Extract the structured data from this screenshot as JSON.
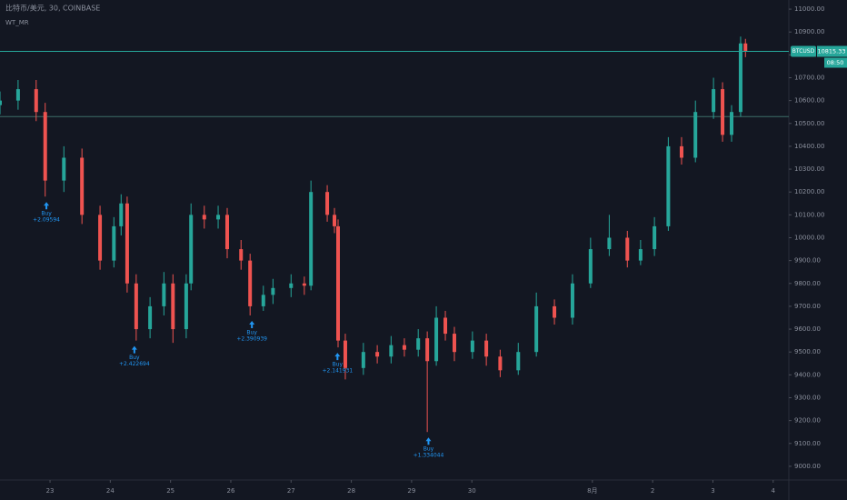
{
  "chart_data": {
    "type": "candlestick",
    "title": "比特币/美元, 30, COINBASE",
    "subtitle": "WT_MR",
    "symbol": "BTCUSD",
    "last_price": 10815.33,
    "countdown": "08:50",
    "level": 10530,
    "up_color": "#26a69a",
    "down_color": "#ef5350",
    "x": [
      -0.83,
      -0.53,
      -0.23,
      -0.08,
      0.23,
      0.53,
      0.83,
      1.06,
      1.18,
      1.28,
      1.43,
      1.66,
      1.89,
      2.04,
      2.26,
      2.34,
      2.56,
      2.79,
      2.94,
      3.17,
      3.32,
      3.54,
      3.7,
      4.0,
      4.22,
      4.33,
      4.6,
      4.72,
      4.78,
      4.9,
      5.2,
      5.43,
      5.66,
      5.88,
      6.11,
      6.26,
      6.41,
      6.56,
      6.71,
      7.01,
      7.24,
      7.47,
      7.77,
      8.07,
      8.37,
      8.67,
      8.97,
      9.28,
      9.58,
      9.8,
      10.03,
      10.26,
      10.48,
      10.71,
      11.01,
      11.16,
      11.31,
      11.46,
      11.54
    ],
    "open": [
      10580,
      10600,
      10650,
      10550,
      10250,
      10350,
      10100,
      9900,
      10050,
      10150,
      9800,
      9600,
      9700,
      9800,
      9600,
      9800,
      10100,
      10080,
      10100,
      9950,
      9900,
      9700,
      9750,
      9780,
      9800,
      9790,
      10200,
      10100,
      10050,
      9550,
      9430,
      9500,
      9480,
      9530,
      9510,
      9560,
      9460,
      9650,
      9580,
      9500,
      9550,
      9480,
      9420,
      9500,
      9700,
      9650,
      9800,
      9950,
      10000,
      9900,
      9950,
      10050,
      10400,
      10350,
      10550,
      10650,
      10450,
      10550,
      10850
    ],
    "high": [
      10640,
      10690,
      10690,
      10590,
      10400,
      10390,
      10140,
      10090,
      10190,
      10180,
      9840,
      9740,
      9850,
      9840,
      9840,
      10150,
      10140,
      10140,
      10130,
      9990,
      9930,
      9790,
      9820,
      9840,
      9830,
      10250,
      10230,
      10130,
      10080,
      9580,
      9540,
      9530,
      9570,
      9560,
      9600,
      9590,
      9700,
      9680,
      9610,
      9590,
      9580,
      9510,
      9540,
      9760,
      9730,
      9840,
      10000,
      10100,
      10030,
      9990,
      10090,
      10440,
      10440,
      10600,
      10700,
      10680,
      10580,
      10880,
      10870
    ],
    "low": [
      10540,
      10560,
      10510,
      10180,
      10200,
      10060,
      9860,
      9870,
      10010,
      9760,
      9550,
      9560,
      9660,
      9540,
      9560,
      9770,
      10040,
      10040,
      9910,
      9860,
      9660,
      9680,
      9710,
      9740,
      9750,
      9770,
      10070,
      10020,
      9520,
      9380,
      9400,
      9450,
      9450,
      9480,
      9480,
      9150,
      9440,
      9550,
      9460,
      9470,
      9440,
      9390,
      9400,
      9480,
      9620,
      9620,
      9780,
      9920,
      9870,
      9880,
      9920,
      10030,
      10320,
      10330,
      10520,
      10420,
      10420,
      10530,
      10790
    ],
    "close": [
      10600,
      10650,
      10550,
      10250,
      10350,
      10100,
      9900,
      10050,
      10150,
      9800,
      9600,
      9700,
      9800,
      9600,
      9800,
      10100,
      10080,
      10100,
      9950,
      9900,
      9700,
      9750,
      9780,
      9800,
      9790,
      10200,
      10100,
      10050,
      9550,
      9430,
      9500,
      9480,
      9530,
      9510,
      9560,
      9460,
      9650,
      9580,
      9500,
      9550,
      9480,
      9420,
      9500,
      9700,
      9650,
      9800,
      9950,
      10000,
      9900,
      9950,
      10050,
      10400,
      10350,
      10550,
      10650,
      10450,
      10550,
      10850,
      10815.33
    ],
    "annotations": [
      {
        "x": -0.06,
        "text": "Buy",
        "note": "+2.09594"
      },
      {
        "x": 1.4,
        "text": "Buy",
        "note": "+2.422694"
      },
      {
        "x": 3.35,
        "text": "Buy",
        "note": "+2.390939"
      },
      {
        "x": 4.77,
        "text": "Buy",
        "note": "+2.141931"
      },
      {
        "x": 6.28,
        "text": "Buy",
        "note": "+1.334044"
      }
    ],
    "xlim": [
      -0.83,
      12.26
    ],
    "xticks": [
      {
        "value": 0,
        "label": "23"
      },
      {
        "value": 1,
        "label": "24"
      },
      {
        "value": 2,
        "label": "25"
      },
      {
        "value": 3,
        "label": "26"
      },
      {
        "value": 4,
        "label": "27"
      },
      {
        "value": 5,
        "label": "28"
      },
      {
        "value": 6,
        "label": "29"
      },
      {
        "value": 7,
        "label": "30"
      },
      {
        "value": 9,
        "label": "8月"
      },
      {
        "value": 10,
        "label": "2"
      },
      {
        "value": 11,
        "label": "3"
      },
      {
        "value": 12,
        "label": "4"
      }
    ],
    "ylim": [
      8940,
      11040
    ],
    "yticks": [
      {
        "value": 11000,
        "label": "11000.00"
      },
      {
        "value": 10900,
        "label": "10900.00"
      },
      {
        "value": 10800,
        "label": "10800.00"
      },
      {
        "value": 10700,
        "label": "10700.00"
      },
      {
        "value": 10600,
        "label": "10600.00"
      },
      {
        "value": 10500,
        "label": "10500.00"
      },
      {
        "value": 10400,
        "label": "10400.00"
      },
      {
        "value": 10300,
        "label": "10300.00"
      },
      {
        "value": 10200,
        "label": "10200.00"
      },
      {
        "value": 10100,
        "label": "10100.00"
      },
      {
        "value": 10000,
        "label": "10000.00"
      },
      {
        "value": 9900,
        "label": "9900.00"
      },
      {
        "value": 9800,
        "label": "9800.00"
      },
      {
        "value": 9700,
        "label": "9700.00"
      },
      {
        "value": 9600,
        "label": "9600.00"
      },
      {
        "value": 9500,
        "label": "9500.00"
      },
      {
        "value": 9400,
        "label": "9400.00"
      },
      {
        "value": 9300,
        "label": "9300.00"
      },
      {
        "value": 9200,
        "label": "9200.00"
      },
      {
        "value": 9100,
        "label": "9100.00"
      },
      {
        "value": 9000,
        "label": "9000.00"
      }
    ]
  }
}
